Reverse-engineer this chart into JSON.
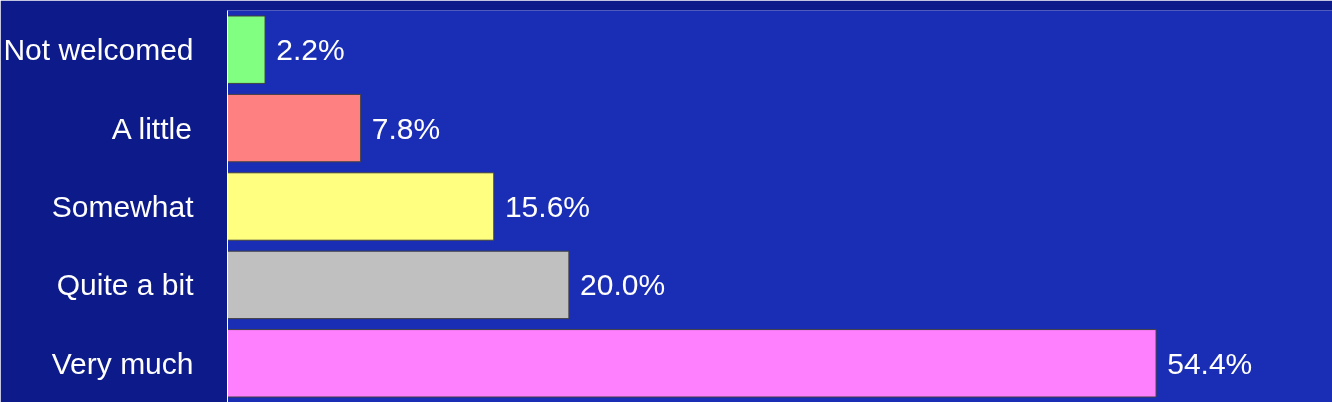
{
  "chart_data": {
    "type": "bar",
    "orientation": "horizontal",
    "categories": [
      "Not welcomed",
      "A little",
      "Somewhat",
      "Quite a bit",
      "Very much"
    ],
    "values": [
      2.2,
      7.8,
      15.6,
      20.0,
      54.4
    ],
    "colors": [
      "#80ff80",
      "#ff8080",
      "#ffff80",
      "#c0c0c0",
      "#ff80ff"
    ],
    "value_labels": [
      "2.2%",
      "7.8%",
      "15.6%",
      "20.0%",
      "54.4%"
    ]
  }
}
